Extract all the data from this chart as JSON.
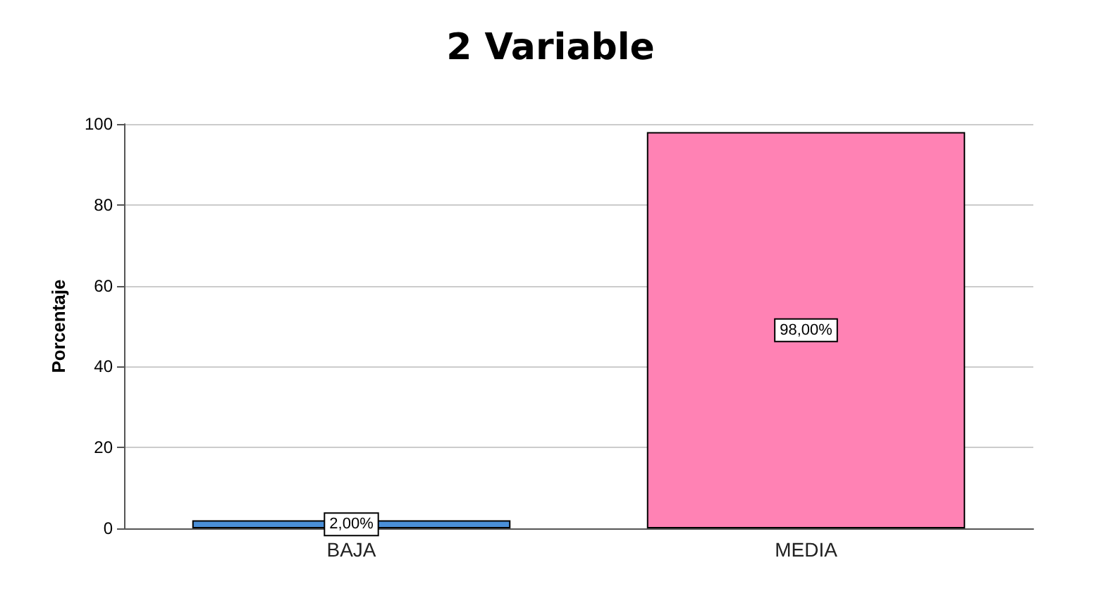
{
  "chart_data": {
    "type": "bar",
    "title": "2 Variable",
    "ylabel": "Porcentaje",
    "categories": [
      "BAJA",
      "MEDIA"
    ],
    "values": [
      2,
      98
    ],
    "colors": [
      "#4a8fd8",
      "#ff82b4"
    ],
    "value_labels": [
      "2,00%",
      "98,00%"
    ],
    "ylim": [
      0,
      100
    ],
    "yticks": [
      0,
      20,
      40,
      60,
      80,
      100
    ],
    "grid": "y"
  }
}
